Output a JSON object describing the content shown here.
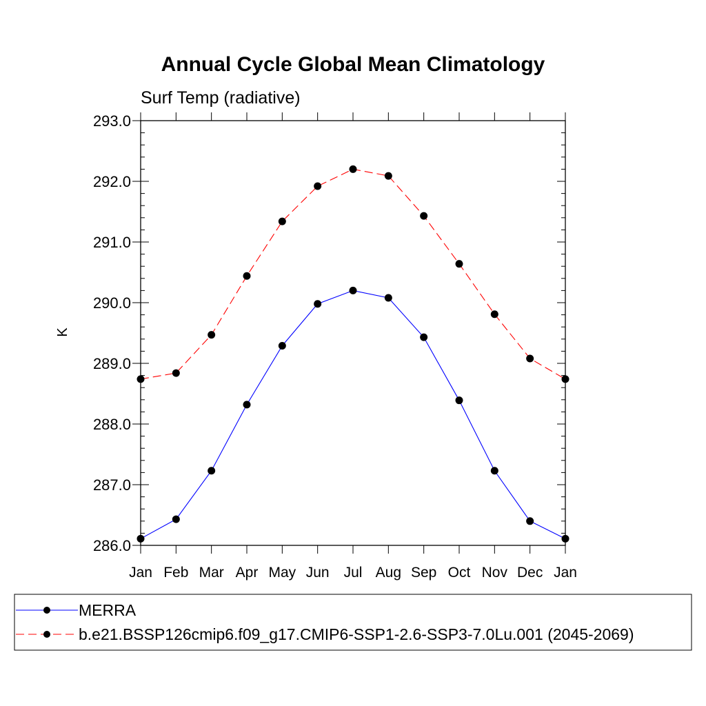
{
  "chart_data": {
    "type": "line",
    "title": "Annual Cycle Global Mean Climatology",
    "subtitle": "Surf Temp (radiative)",
    "xlabel": "",
    "ylabel": "K",
    "categories": [
      "Jan",
      "Feb",
      "Mar",
      "Apr",
      "May",
      "Jun",
      "Jul",
      "Aug",
      "Sep",
      "Oct",
      "Nov",
      "Dec",
      "Jan"
    ],
    "ylim": [
      286.0,
      293.0
    ],
    "yticks": [
      "286.0",
      "287.0",
      "288.0",
      "289.0",
      "290.0",
      "291.0",
      "292.0",
      "293.0"
    ],
    "grid": false,
    "legend_position": "bottom",
    "series": [
      {
        "name": "MERRA",
        "color": "#0000ff",
        "dash": "solid",
        "values": [
          286.11,
          286.43,
          287.23,
          288.32,
          289.29,
          289.98,
          290.2,
          290.08,
          289.43,
          288.39,
          287.23,
          286.4,
          286.11
        ]
      },
      {
        "name": "b.e21.BSSP126cmip6.f09_g17.CMIP6-SSP1-2.6-SSP3-7.0Lu.001 (2045-2069)",
        "color": "#ff0000",
        "dash": "dashed",
        "values": [
          288.74,
          288.84,
          289.47,
          290.44,
          291.34,
          291.92,
          292.2,
          292.09,
          291.43,
          290.64,
          289.81,
          289.08,
          288.74
        ]
      }
    ]
  }
}
